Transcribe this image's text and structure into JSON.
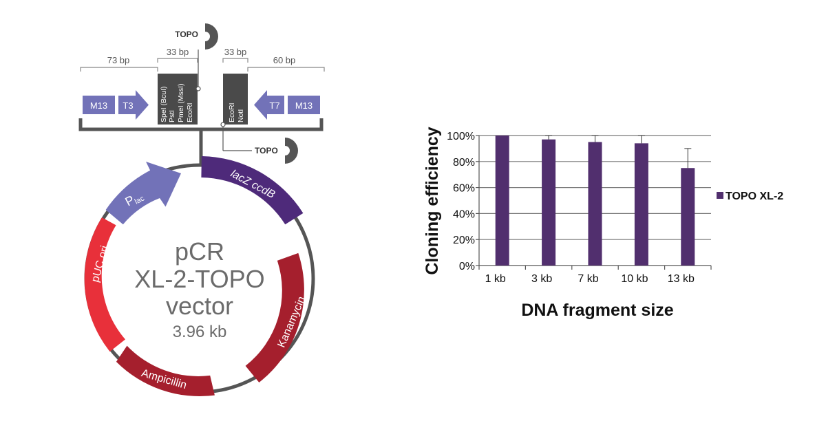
{
  "vector": {
    "name_line1": "pCR",
    "name_line2": "XL-2-TOPO",
    "name_line3": "vector",
    "size": "3.96 kb",
    "features": {
      "plac_main": "P",
      "plac_sub": "lac",
      "lacz": "lacZ ccdB",
      "puc": "pUC ori",
      "ampicillin": "Ampicillin",
      "kanamycin": "Kanamycin"
    },
    "colors": {
      "plac": "#7272b8",
      "lacz": "#4e2a7a",
      "red_light": "#e8303a",
      "red_dark": "#a51f2d",
      "backbone": "#555555"
    }
  },
  "mcs": {
    "seg1": "73 bp",
    "seg2": "33 bp",
    "seg3": "33 bp",
    "seg4": "60 bp",
    "m13_left": "M13",
    "t3": "T3",
    "t7": "T7",
    "m13_right": "M13",
    "sites_left": [
      "SpeI (BcuI)",
      "PstI",
      "PmeI (MssI)",
      "EcoRI"
    ],
    "sites_right": [
      "EcoRI",
      "NotI"
    ],
    "topo_top": "TOPO",
    "topo_bottom": "TOPO"
  },
  "chart_data": {
    "type": "bar",
    "categories": [
      "1 kb",
      "3 kb",
      "7 kb",
      "10 kb",
      "13 kb"
    ],
    "series": [
      {
        "name": "TOPO XL-2",
        "values": [
          100,
          97,
          95,
          94,
          75
        ],
        "errors": [
          0,
          3,
          5,
          6,
          15
        ]
      }
    ],
    "xlabel": "DNA fragment size",
    "ylabel": "Cloning efficiency",
    "ylim": [
      0,
      100
    ],
    "yticks": [
      "0%",
      "20%",
      "40%",
      "60%",
      "80%",
      "100%"
    ],
    "grid": true,
    "legend": "right",
    "bar_color": "#512f6e"
  }
}
